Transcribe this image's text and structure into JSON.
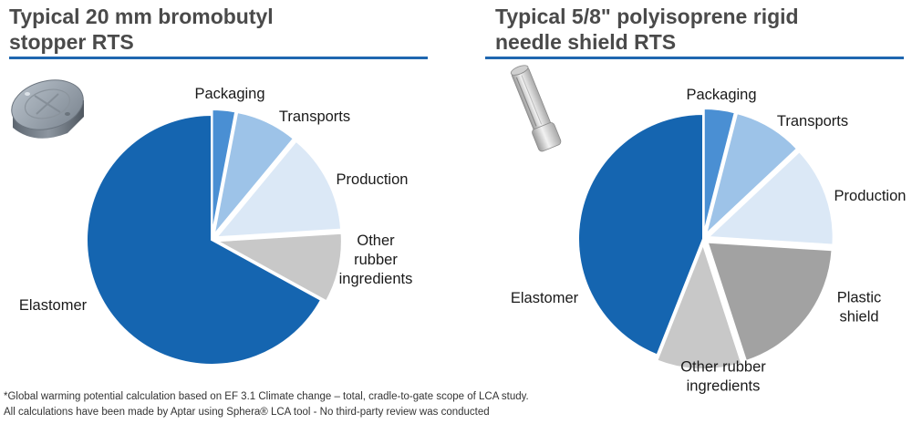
{
  "colors": {
    "accent": "#1f67b0",
    "elastomer": "#1565b0",
    "packaging": "#4a8fd3",
    "transports": "#9dc3e8",
    "production": "#dbe8f6",
    "other_rubber": "#c8c8c8",
    "plastic_shield": "#a2a2a2"
  },
  "chart_data": [
    {
      "type": "pie",
      "title": "Typical 20 mm bromobutyl\nstopper RTS",
      "product_icon": "rubber-stopper-icon",
      "categories": [
        "Packaging",
        "Transports",
        "Production",
        "Other\nrubber\ningredients",
        "Elastomer"
      ],
      "values": [
        3,
        8,
        13,
        9,
        67
      ],
      "slice_colors": [
        "#4a8fd3",
        "#9dc3e8",
        "#dbe8f6",
        "#c8c8c8",
        "#1565b0"
      ],
      "start_angle_deg": 0,
      "direction": "clockwise"
    },
    {
      "type": "pie",
      "title": "Typical 5/8\" polyisoprene rigid\nneedle shield RTS",
      "product_icon": "rigid-needle-shield-icon",
      "categories": [
        "Packaging",
        "Transports",
        "Production",
        "Plastic\nshield",
        "Other rubber\ningredients",
        "Elastomer"
      ],
      "values": [
        4,
        9,
        13,
        19,
        11,
        44
      ],
      "slice_colors": [
        "#4a8fd3",
        "#9dc3e8",
        "#dbe8f6",
        "#a2a2a2",
        "#c8c8c8",
        "#1565b0"
      ],
      "start_angle_deg": 0,
      "direction": "clockwise"
    }
  ],
  "footnotes": [
    "*Global warming potential calculation based on EF 3.1 Climate change – total, cradle-to-gate scope of LCA study.",
    "All calculations have been made by Aptar using Sphera® LCA tool - No third-party review was conducted"
  ]
}
